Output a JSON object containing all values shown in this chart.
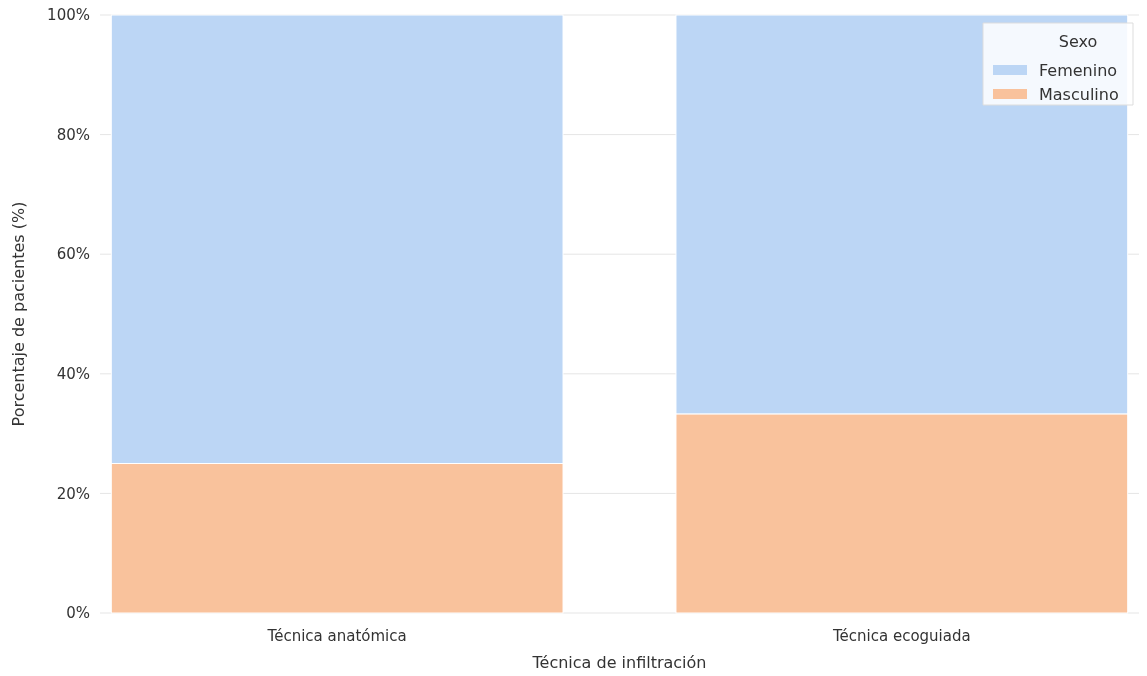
{
  "chart_data": {
    "type": "bar",
    "stacked": true,
    "xlabel": "Técnica de infiltración",
    "ylabel": "Porcentaje de pacientes (%)",
    "legend_title": "Sexo",
    "legend": "top right",
    "grid": "y",
    "categories": [
      "Técnica anatómica",
      "Técnica ecoguiada"
    ],
    "series": [
      {
        "name": "Masculino",
        "color": "#f9c29c",
        "values": [
          25,
          33.3
        ]
      },
      {
        "name": "Femenino",
        "color": "#bcd6f5",
        "values": [
          75,
          66.7
        ]
      }
    ],
    "ylim": [
      0,
      100
    ],
    "yticks": [
      {
        "value": 0,
        "label": "0%"
      },
      {
        "value": 20,
        "label": "20%"
      },
      {
        "value": 40,
        "label": "40%"
      },
      {
        "value": 60,
        "label": "60%"
      },
      {
        "value": 80,
        "label": "80%"
      },
      {
        "value": 100,
        "label": "100%"
      }
    ]
  }
}
